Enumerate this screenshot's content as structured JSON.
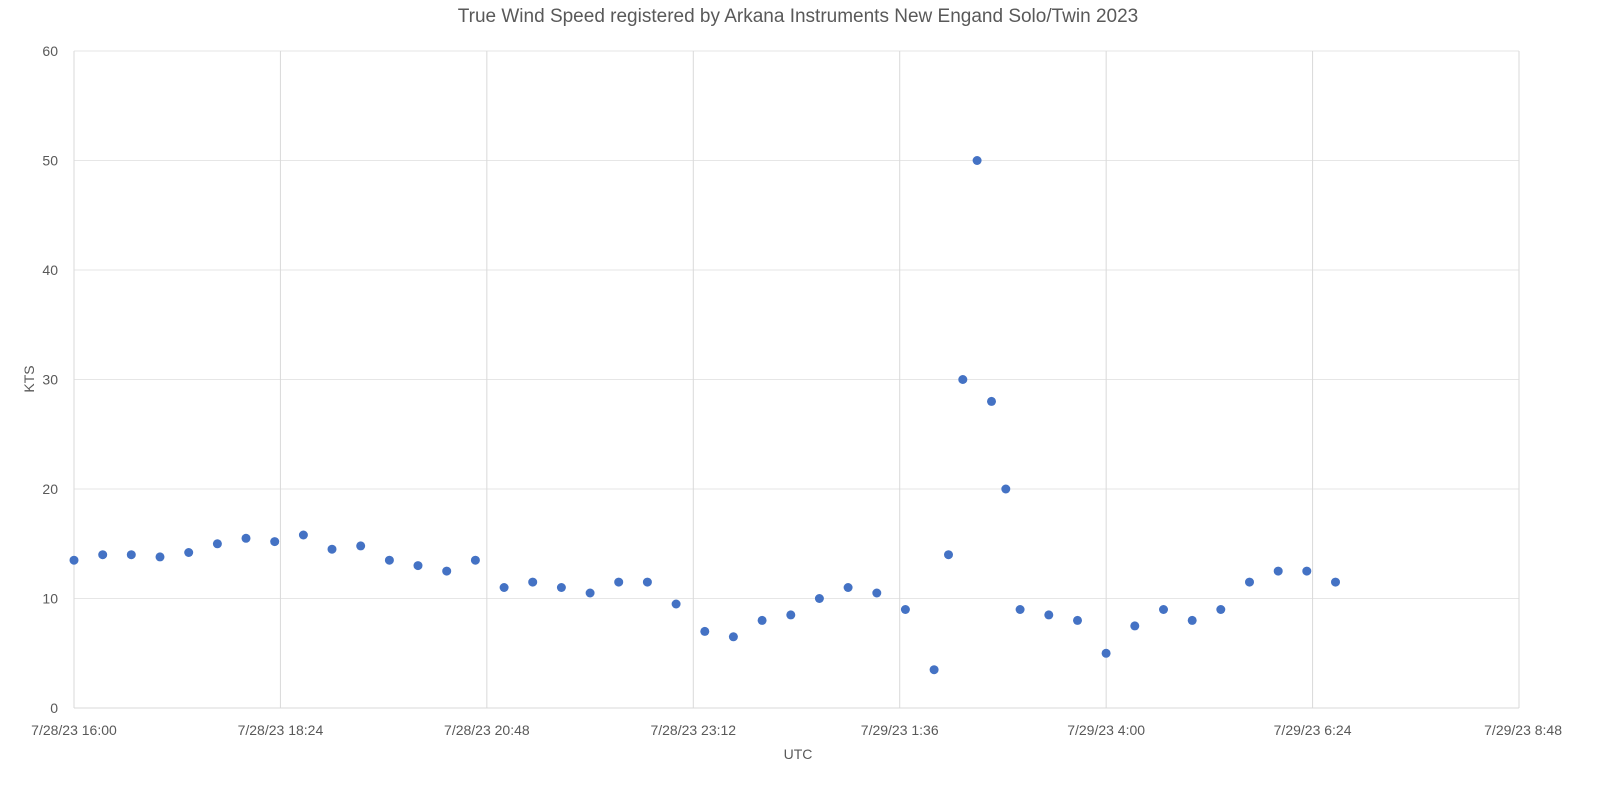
{
  "chart_data": {
    "type": "scatter",
    "title": "True Wind Speed registered by Arkana Instruments New Engand  Solo/Twin 2023",
    "xlabel": "UTC",
    "ylabel": "KTS",
    "ylim": [
      0,
      60
    ],
    "yticks": [
      0,
      10,
      20,
      30,
      40,
      50,
      60
    ],
    "y_tick_labels": [
      "0",
      "10",
      "20",
      "30",
      "40",
      "50",
      "60"
    ],
    "xlim": [
      "2023-07-28T16:00",
      "2023-07-29T08:48"
    ],
    "x_tick_labels": [
      "7/28/23 16:00",
      "7/28/23 18:24",
      "7/28/23 20:48",
      "7/28/23 23:12",
      "7/29/23 1:36",
      "7/29/23 4:00",
      "7/29/23 6:24",
      "7/29/23 8:48"
    ],
    "grid": true,
    "legend": "none",
    "marker_color": "#4472c4",
    "series": [
      {
        "x": [
          "2023-07-28T16:00",
          "2023-07-28T16:20",
          "2023-07-28T16:40",
          "2023-07-28T17:00",
          "2023-07-28T17:20",
          "2023-07-28T17:40",
          "2023-07-28T18:00",
          "2023-07-28T18:20",
          "2023-07-28T18:40",
          "2023-07-28T19:00",
          "2023-07-28T19:20",
          "2023-07-28T19:40",
          "2023-07-28T20:00",
          "2023-07-28T20:20",
          "2023-07-28T20:40",
          "2023-07-28T21:00",
          "2023-07-28T21:20",
          "2023-07-28T21:40",
          "2023-07-28T22:00",
          "2023-07-28T22:20",
          "2023-07-28T22:40",
          "2023-07-28T23:00",
          "2023-07-28T23:20",
          "2023-07-28T23:40",
          "2023-07-29T00:00",
          "2023-07-29T00:20",
          "2023-07-29T00:40",
          "2023-07-29T01:00",
          "2023-07-29T01:20",
          "2023-07-29T01:40",
          "2023-07-29T02:00",
          "2023-07-29T02:10",
          "2023-07-29T02:20",
          "2023-07-29T02:30",
          "2023-07-29T02:40",
          "2023-07-29T02:50",
          "2023-07-29T03:00",
          "2023-07-29T03:20",
          "2023-07-29T03:40",
          "2023-07-29T04:00",
          "2023-07-29T04:20",
          "2023-07-29T04:40",
          "2023-07-29T05:00",
          "2023-07-29T05:20",
          "2023-07-29T05:40",
          "2023-07-29T06:00",
          "2023-07-29T06:20",
          "2023-07-29T06:40"
        ],
        "y": [
          13.5,
          14,
          14,
          13.8,
          14.2,
          15,
          15.5,
          15.2,
          15.8,
          14.5,
          14.8,
          13.5,
          13,
          12.5,
          13.5,
          11,
          11.5,
          11,
          10.5,
          11.5,
          11.5,
          9.5,
          7,
          6.5,
          8,
          8.5,
          10,
          11,
          10.5,
          9,
          3.5,
          14,
          30,
          50,
          28,
          20,
          9,
          8.5,
          8,
          5,
          7.5,
          9,
          8,
          9,
          11.5,
          12.5,
          12.5,
          11.5
        ]
      }
    ],
    "annotations": []
  }
}
